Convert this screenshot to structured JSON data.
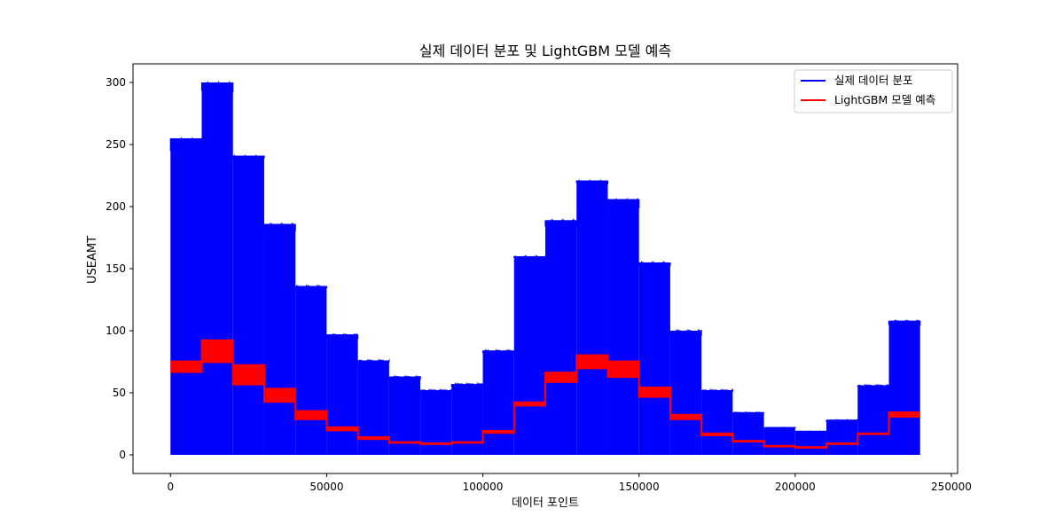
{
  "chart_data": {
    "type": "area",
    "title": "실제 데이터 분포 및 LightGBM 모델 예측",
    "xlabel": "데이터 포인트",
    "ylabel": "USEAMT",
    "xlim": [
      -12000,
      252000
    ],
    "ylim": [
      -15,
      315
    ],
    "xticks": [
      0,
      50000,
      100000,
      150000,
      200000,
      250000
    ],
    "yticks": [
      0,
      50,
      100,
      150,
      200,
      250,
      300
    ],
    "grid": false,
    "legend_position": "top-right",
    "series": [
      {
        "name": "실제 데이터 분포",
        "color": "#0000ff",
        "style": "dense oscillating line filling from ~0 to per-segment maximum",
        "segments": [
          {
            "x_start": 0,
            "x_end": 10000,
            "min": 0,
            "max": 255
          },
          {
            "x_start": 10000,
            "x_end": 20000,
            "min": 0,
            "max": 300
          },
          {
            "x_start": 20000,
            "x_end": 30000,
            "min": 0,
            "max": 241
          },
          {
            "x_start": 30000,
            "x_end": 40000,
            "min": 0,
            "max": 186
          },
          {
            "x_start": 40000,
            "x_end": 50000,
            "min": 0,
            "max": 136
          },
          {
            "x_start": 50000,
            "x_end": 60000,
            "min": 0,
            "max": 97
          },
          {
            "x_start": 60000,
            "x_end": 70000,
            "min": 0,
            "max": 76
          },
          {
            "x_start": 70000,
            "x_end": 80000,
            "min": 0,
            "max": 63
          },
          {
            "x_start": 80000,
            "x_end": 90000,
            "min": 0,
            "max": 52
          },
          {
            "x_start": 90000,
            "x_end": 100000,
            "min": 0,
            "max": 57
          },
          {
            "x_start": 100000,
            "x_end": 110000,
            "min": 0,
            "max": 84
          },
          {
            "x_start": 110000,
            "x_end": 120000,
            "min": 0,
            "max": 160
          },
          {
            "x_start": 120000,
            "x_end": 130000,
            "min": 0,
            "max": 189
          },
          {
            "x_start": 130000,
            "x_end": 140000,
            "min": 0,
            "max": 221
          },
          {
            "x_start": 140000,
            "x_end": 150000,
            "min": 0,
            "max": 206
          },
          {
            "x_start": 150000,
            "x_end": 160000,
            "min": 0,
            "max": 155
          },
          {
            "x_start": 160000,
            "x_end": 170000,
            "min": 0,
            "max": 100
          },
          {
            "x_start": 170000,
            "x_end": 180000,
            "min": 0,
            "max": 52
          },
          {
            "x_start": 180000,
            "x_end": 190000,
            "min": 0,
            "max": 34
          },
          {
            "x_start": 190000,
            "x_end": 200000,
            "min": 0,
            "max": 22
          },
          {
            "x_start": 200000,
            "x_end": 210000,
            "min": 0,
            "max": 19
          },
          {
            "x_start": 210000,
            "x_end": 220000,
            "min": 0,
            "max": 28
          },
          {
            "x_start": 220000,
            "x_end": 230000,
            "min": 0,
            "max": 56
          },
          {
            "x_start": 230000,
            "x_end": 240000,
            "min": 0,
            "max": 108
          }
        ]
      },
      {
        "name": "LightGBM 모델 예측",
        "color": "#ff0000",
        "style": "predicted band per segment (low to high)",
        "segments": [
          {
            "x_start": 0,
            "x_end": 10000,
            "low": 66,
            "high": 76
          },
          {
            "x_start": 10000,
            "x_end": 20000,
            "low": 74,
            "high": 93
          },
          {
            "x_start": 20000,
            "x_end": 30000,
            "low": 56,
            "high": 73
          },
          {
            "x_start": 30000,
            "x_end": 40000,
            "low": 42,
            "high": 54
          },
          {
            "x_start": 40000,
            "x_end": 50000,
            "low": 28,
            "high": 36
          },
          {
            "x_start": 50000,
            "x_end": 60000,
            "low": 19,
            "high": 23
          },
          {
            "x_start": 60000,
            "x_end": 70000,
            "low": 12,
            "high": 15
          },
          {
            "x_start": 70000,
            "x_end": 80000,
            "low": 9,
            "high": 11
          },
          {
            "x_start": 80000,
            "x_end": 90000,
            "low": 8,
            "high": 10
          },
          {
            "x_start": 90000,
            "x_end": 100000,
            "low": 9,
            "high": 11
          },
          {
            "x_start": 100000,
            "x_end": 110000,
            "low": 17,
            "high": 20
          },
          {
            "x_start": 110000,
            "x_end": 120000,
            "low": 39,
            "high": 43
          },
          {
            "x_start": 120000,
            "x_end": 130000,
            "low": 58,
            "high": 67
          },
          {
            "x_start": 130000,
            "x_end": 140000,
            "low": 69,
            "high": 81
          },
          {
            "x_start": 140000,
            "x_end": 150000,
            "low": 62,
            "high": 76
          },
          {
            "x_start": 150000,
            "x_end": 160000,
            "low": 46,
            "high": 55
          },
          {
            "x_start": 160000,
            "x_end": 170000,
            "low": 28,
            "high": 33
          },
          {
            "x_start": 170000,
            "x_end": 180000,
            "low": 15,
            "high": 18
          },
          {
            "x_start": 180000,
            "x_end": 190000,
            "low": 10,
            "high": 12
          },
          {
            "x_start": 190000,
            "x_end": 200000,
            "low": 6,
            "high": 8
          },
          {
            "x_start": 200000,
            "x_end": 210000,
            "low": 5,
            "high": 7
          },
          {
            "x_start": 210000,
            "x_end": 220000,
            "low": 8,
            "high": 10
          },
          {
            "x_start": 220000,
            "x_end": 230000,
            "low": 16,
            "high": 18
          },
          {
            "x_start": 230000,
            "x_end": 240000,
            "low": 30,
            "high": 35
          }
        ]
      }
    ]
  }
}
